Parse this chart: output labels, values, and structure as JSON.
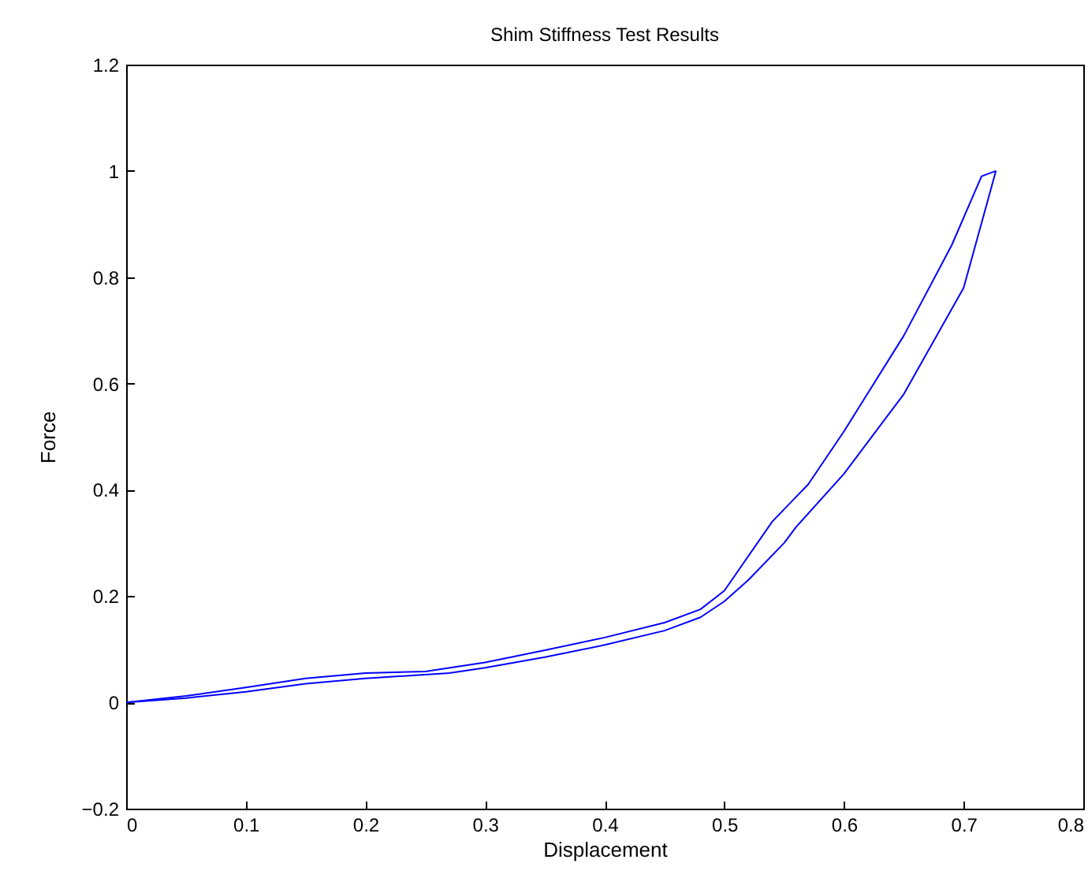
{
  "chart_data": {
    "type": "line",
    "title": "Shim Stiffness Test Results",
    "xlabel": "Displacement",
    "ylabel": "Force",
    "series": [
      {
        "color": "#0000ff",
        "x": [
          0,
          0.05,
          0.1,
          0.15,
          0.2,
          0.27,
          0.3,
          0.35,
          0.4,
          0.45,
          0.48,
          0.5,
          0.52,
          0.55,
          0.56,
          0.6,
          0.65,
          0.7,
          0.727
        ],
        "values": [
          0,
          0.008,
          0.02,
          0.035,
          0.045,
          0.055,
          0.065,
          0.085,
          0.108,
          0.135,
          0.16,
          0.19,
          0.23,
          0.3,
          0.33,
          0.43,
          0.58,
          0.78,
          1.0
        ]
      },
      {
        "color": "#0000ff",
        "x": [
          0.727,
          0.715,
          0.69,
          0.65,
          0.6,
          0.57,
          0.54,
          0.5,
          0.48,
          0.45,
          0.4,
          0.35,
          0.3,
          0.25,
          0.2,
          0.15,
          0.1,
          0.05,
          0
        ],
        "values": [
          1.0,
          0.99,
          0.86,
          0.69,
          0.51,
          0.41,
          0.34,
          0.21,
          0.175,
          0.15,
          0.122,
          0.098,
          0.075,
          0.058,
          0.055,
          0.045,
          0.028,
          0.012,
          0
        ]
      }
    ],
    "xlim": [
      0,
      0.8
    ],
    "xticks": [
      0,
      0.1,
      0.2,
      0.3,
      0.4,
      0.5,
      0.6,
      0.7,
      0.8
    ],
    "ylim": [
      -0.2,
      1.2
    ],
    "yticks": [
      {
        "value": -0.2,
        "label": "−0.2"
      },
      0,
      0.2,
      0.4,
      0.6,
      0.8,
      1,
      1.2
    ],
    "grid": false,
    "marker": "none",
    "line_style": "solid"
  }
}
